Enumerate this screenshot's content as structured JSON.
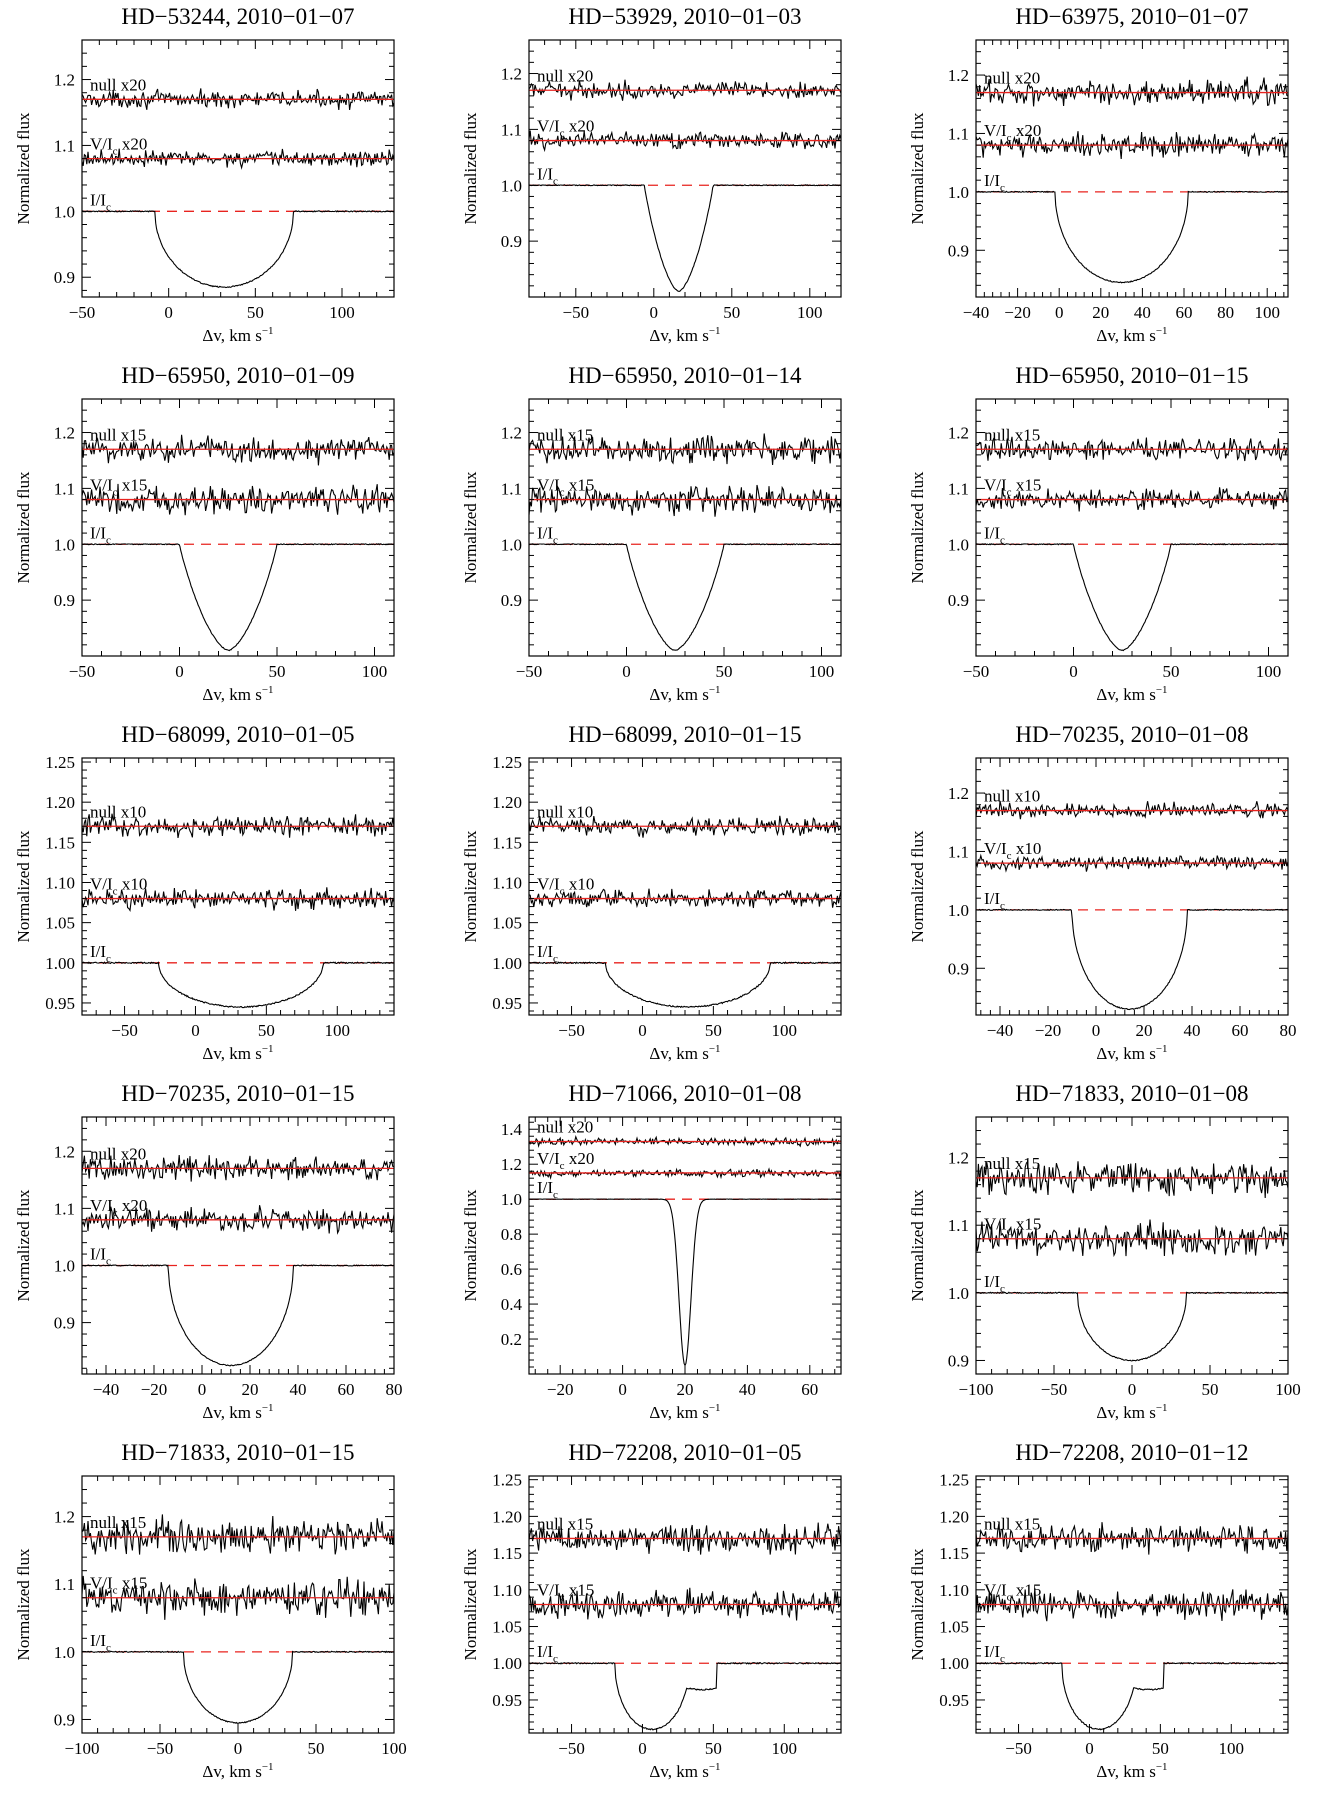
{
  "figure": {
    "ylabel": "Normalized flux",
    "xlabel_main": "Δv, km s",
    "xlabel_sup": "−1",
    "label_I": "I/I",
    "label_V": "V/I",
    "sub_c": "c"
  },
  "colors": {
    "profile": "#000000",
    "model": "#e8231f",
    "axes": "#000000"
  },
  "chart_data": [
    {
      "type": "line",
      "title": "HD−53244, 2010−01−07",
      "xlim": [
        -50,
        130
      ],
      "ylim": [
        0.87,
        1.26
      ],
      "xticks": [
        -50,
        0,
        50,
        100
      ],
      "yticks": [
        0.9,
        1.0,
        1.1,
        1.2
      ],
      "ydec": 1,
      "null_label": "null x20",
      "v_label": " x20",
      "null_level": 1.17,
      "v_level": 1.08,
      "center": 32,
      "half_width": 40,
      "depth": 0.115,
      "shape": "round",
      "noise": 0.006
    },
    {
      "type": "line",
      "title": "HD−53929, 2010−01−03",
      "xlim": [
        -80,
        120
      ],
      "ylim": [
        0.8,
        1.26
      ],
      "xticks": [
        -50,
        0,
        50,
        100
      ],
      "yticks": [
        0.9,
        1.0,
        1.1,
        1.2
      ],
      "ydec": 1,
      "null_label": "null x20",
      "v_label": " x20",
      "null_level": 1.17,
      "v_level": 1.08,
      "center": 16,
      "half_width": 22,
      "depth": 0.19,
      "shape": "v",
      "noise": 0.007
    },
    {
      "type": "line",
      "title": "HD−63975, 2010−01−07",
      "xlim": [
        -40,
        110
      ],
      "ylim": [
        0.82,
        1.26
      ],
      "xticks": [
        -40,
        -20,
        0,
        20,
        40,
        60,
        80,
        100
      ],
      "yticks": [
        0.9,
        1.0,
        1.1,
        1.2
      ],
      "ydec": 1,
      "null_label": "null x20",
      "v_label": " x20",
      "null_level": 1.17,
      "v_level": 1.08,
      "center": 30,
      "half_width": 32,
      "depth": 0.155,
      "shape": "round",
      "noise": 0.01
    },
    {
      "type": "line",
      "title": "HD−65950, 2010−01−09",
      "xlim": [
        -50,
        110
      ],
      "ylim": [
        0.8,
        1.26
      ],
      "xticks": [
        -50,
        0,
        50,
        100
      ],
      "yticks": [
        0.9,
        1.0,
        1.1,
        1.2
      ],
      "ydec": 1,
      "null_label": "null x15",
      "v_label": " x15",
      "null_level": 1.17,
      "v_level": 1.08,
      "center": 25,
      "half_width": 25,
      "depth": 0.19,
      "shape": "v",
      "noise": 0.012
    },
    {
      "type": "line",
      "title": "HD−65950, 2010−01−14",
      "xlim": [
        -50,
        110
      ],
      "ylim": [
        0.8,
        1.26
      ],
      "xticks": [
        -50,
        0,
        50,
        100
      ],
      "yticks": [
        0.9,
        1.0,
        1.1,
        1.2
      ],
      "ydec": 1,
      "null_label": "null x15",
      "v_label": " x15",
      "null_level": 1.17,
      "v_level": 1.08,
      "center": 25,
      "half_width": 25,
      "depth": 0.19,
      "shape": "v",
      "noise": 0.012
    },
    {
      "type": "line",
      "title": "HD−65950, 2010−01−15",
      "xlim": [
        -50,
        110
      ],
      "ylim": [
        0.8,
        1.26
      ],
      "xticks": [
        -50,
        0,
        50,
        100
      ],
      "yticks": [
        0.9,
        1.0,
        1.1,
        1.2
      ],
      "ydec": 1,
      "null_label": "null x15",
      "v_label": " x15",
      "null_level": 1.17,
      "v_level": 1.08,
      "center": 25,
      "half_width": 25,
      "depth": 0.19,
      "shape": "v",
      "noise": 0.009
    },
    {
      "type": "line",
      "title": "HD−68099, 2010−01−05",
      "xlim": [
        -80,
        140
      ],
      "ylim": [
        0.935,
        1.255
      ],
      "xticks": [
        -50,
        0,
        50,
        100
      ],
      "yticks": [
        0.95,
        1.0,
        1.05,
        1.1,
        1.15,
        1.2,
        1.25
      ],
      "ydec": 2,
      "null_label": "null x10",
      "v_label": " x10",
      "null_level": 1.17,
      "v_level": 1.08,
      "center": 32,
      "half_width": 58,
      "depth": 0.055,
      "shape": "round",
      "noise": 0.006
    },
    {
      "type": "line",
      "title": "HD−68099, 2010−01−15",
      "xlim": [
        -80,
        140
      ],
      "ylim": [
        0.935,
        1.255
      ],
      "xticks": [
        -50,
        0,
        50,
        100
      ],
      "yticks": [
        0.95,
        1.0,
        1.05,
        1.1,
        1.15,
        1.2,
        1.25
      ],
      "ydec": 2,
      "null_label": "null x10",
      "v_label": " x10",
      "null_level": 1.17,
      "v_level": 1.08,
      "center": 32,
      "half_width": 58,
      "depth": 0.055,
      "shape": "round",
      "noise": 0.005
    },
    {
      "type": "line",
      "title": "HD−70235, 2010−01−08",
      "xlim": [
        -50,
        80
      ],
      "ylim": [
        0.82,
        1.26
      ],
      "xticks": [
        -40,
        -20,
        0,
        20,
        40,
        60,
        80
      ],
      "yticks": [
        0.9,
        1.0,
        1.1,
        1.2
      ],
      "ydec": 1,
      "null_label": "null x10",
      "v_label": " x10",
      "null_level": 1.17,
      "v_level": 1.08,
      "center": 14,
      "half_width": 24,
      "depth": 0.17,
      "shape": "round",
      "noise": 0.006
    },
    {
      "type": "line",
      "title": "HD−70235, 2010−01−15",
      "xlim": [
        -50,
        80
      ],
      "ylim": [
        0.81,
        1.26
      ],
      "xticks": [
        -40,
        -20,
        0,
        20,
        40,
        60,
        80
      ],
      "yticks": [
        0.9,
        1.0,
        1.1,
        1.2
      ],
      "ydec": 1,
      "null_label": "null x20",
      "v_label": " x20",
      "null_level": 1.17,
      "v_level": 1.08,
      "center": 12,
      "half_width": 26,
      "depth": 0.175,
      "shape": "round",
      "noise": 0.01
    },
    {
      "type": "line",
      "title": "HD−71066, 2010−01−08",
      "xlim": [
        -30,
        70
      ],
      "ylim": [
        0.0,
        1.47
      ],
      "xticks": [
        -20,
        0,
        20,
        40,
        60
      ],
      "yticks": [
        0.2,
        0.4,
        0.6,
        0.8,
        1.0,
        1.2,
        1.4
      ],
      "ydec": 1,
      "null_label": "null x20",
      "v_label": " x20",
      "null_level": 1.33,
      "v_level": 1.15,
      "center": 20,
      "half_width": 4.5,
      "depth": 0.95,
      "shape": "narrow",
      "noise": 0.01
    },
    {
      "type": "line",
      "title": "HD−71833, 2010−01−08",
      "xlim": [
        -100,
        100
      ],
      "ylim": [
        0.88,
        1.26
      ],
      "xticks": [
        -100,
        -50,
        0,
        50,
        100
      ],
      "yticks": [
        0.9,
        1.0,
        1.1,
        1.2
      ],
      "ydec": 1,
      "null_label": "null x15",
      "v_label": " x15",
      "null_level": 1.17,
      "v_level": 1.08,
      "center": 0,
      "half_width": 35,
      "depth": 0.1,
      "shape": "round",
      "noise": 0.011
    },
    {
      "type": "line",
      "title": "HD−71833, 2010−01−15",
      "xlim": [
        -100,
        100
      ],
      "ylim": [
        0.88,
        1.26
      ],
      "xticks": [
        -100,
        -50,
        0,
        50,
        100
      ],
      "yticks": [
        0.9,
        1.0,
        1.1,
        1.2
      ],
      "ydec": 1,
      "null_label": "null x15",
      "v_label": " x15",
      "null_level": 1.17,
      "v_level": 1.08,
      "center": 0,
      "half_width": 35,
      "depth": 0.105,
      "shape": "round",
      "noise": 0.012
    },
    {
      "type": "line",
      "title": "HD−72208, 2010−01−05",
      "xlim": [
        -80,
        140
      ],
      "ylim": [
        0.905,
        1.255
      ],
      "xticks": [
        -50,
        0,
        50,
        100
      ],
      "yticks": [
        0.95,
        1.0,
        1.05,
        1.1,
        1.15,
        1.2,
        1.25
      ],
      "ydec": 2,
      "null_label": "null x15",
      "v_label": " x15",
      "null_level": 1.17,
      "v_level": 1.08,
      "center": 12,
      "half_width": 35,
      "depth": 0.09,
      "shape": "shoulder",
      "noise": 0.009
    },
    {
      "type": "line",
      "title": "HD−72208, 2010−01−12",
      "xlim": [
        -80,
        140
      ],
      "ylim": [
        0.905,
        1.255
      ],
      "xticks": [
        -50,
        0,
        50,
        100
      ],
      "yticks": [
        0.95,
        1.0,
        1.05,
        1.1,
        1.15,
        1.2,
        1.25
      ],
      "ydec": 2,
      "null_label": "null x15",
      "v_label": " x15",
      "null_level": 1.17,
      "v_level": 1.08,
      "center": 12,
      "half_width": 35,
      "depth": 0.09,
      "shape": "shoulder",
      "noise": 0.009
    }
  ]
}
